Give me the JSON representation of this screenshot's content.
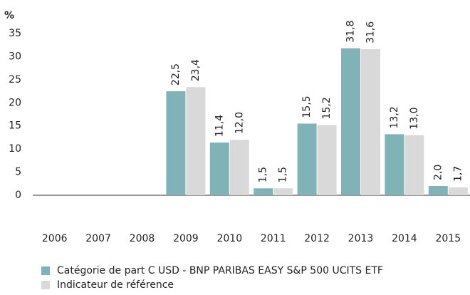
{
  "chart_data": {
    "type": "bar",
    "y_label": "%",
    "categories": [
      "2006",
      "2007",
      "2008",
      "2009",
      "2010",
      "2011",
      "2012",
      "2013",
      "2014",
      "2015"
    ],
    "series": [
      {
        "name": "Catégorie de part C USD - BNP PARIBAS EASY S&P 500 UCITS ETF",
        "color": "#7fb3b8",
        "values": [
          null,
          null,
          null,
          22.5,
          11.4,
          1.5,
          15.5,
          31.8,
          13.2,
          2.0
        ],
        "value_labels": [
          null,
          null,
          null,
          "22,5",
          "11,4",
          "1,5",
          "15,5",
          "31,8",
          "13,2",
          "2,0"
        ]
      },
      {
        "name": "Indicateur de référence",
        "color": "#d9d9d9",
        "values": [
          null,
          null,
          null,
          23.4,
          12.0,
          1.5,
          15.2,
          31.6,
          13.0,
          1.7
        ],
        "value_labels": [
          null,
          null,
          null,
          "23,4",
          "12,0",
          "1,5",
          "15,2",
          "31,6",
          "13,0",
          "1,7"
        ]
      }
    ],
    "ylim": [
      0,
      35
    ],
    "yticks": [
      0,
      5,
      10,
      15,
      20,
      25,
      30,
      35
    ],
    "legend": "bottom-left"
  }
}
